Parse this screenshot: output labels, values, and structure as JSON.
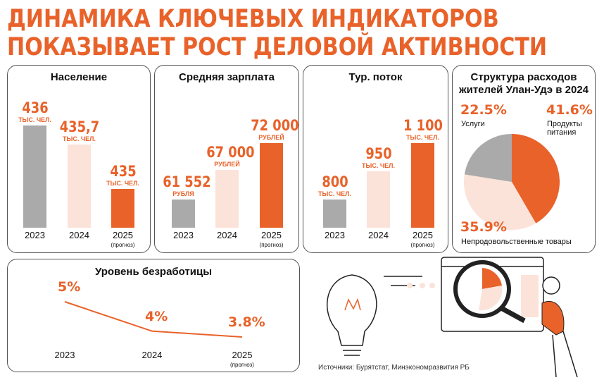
{
  "title": {
    "line1": "ДИНАМИКА КЛЮЧЕВЫХ ИНДИКАТОРОВ",
    "line2": "ПОКАЗЫВАЕТ РОСТ ДЕЛОВОЙ АКТИВНОСТИ"
  },
  "colors": {
    "accent": "#e8622a",
    "gray": "#aaaaaa",
    "light": "#fbe3da"
  },
  "chart_data": [
    {
      "type": "bar",
      "title": "Население",
      "categories": [
        "2023",
        "2024",
        "2025"
      ],
      "notes": [
        "",
        "",
        "(прогноз)"
      ],
      "values": [
        436,
        435.7,
        435
      ],
      "labels": [
        "436",
        "435,7",
        "435"
      ],
      "units": [
        "ТЫС. ЧЕЛ.",
        "ТЫС. ЧЕЛ.",
        "ТЫС. ЧЕЛ."
      ],
      "colors": [
        "#aaaaaa",
        "#fbe3da",
        "#e8622a"
      ]
    },
    {
      "type": "bar",
      "title": "Средняя зарплата",
      "categories": [
        "2023",
        "2024",
        "2025"
      ],
      "notes": [
        "",
        "",
        "(прогноз)"
      ],
      "values": [
        61552,
        67000,
        72000
      ],
      "labels": [
        "61 552",
        "67 000",
        "72 000"
      ],
      "units": [
        "РУБЛЯ",
        "РУБЛЕЙ",
        "РУБЛЕЙ"
      ],
      "colors": [
        "#aaaaaa",
        "#fbe3da",
        "#e8622a"
      ]
    },
    {
      "type": "bar",
      "title": "Тур. поток",
      "categories": [
        "2023",
        "2024",
        "2025"
      ],
      "notes": [
        "",
        "",
        "(прогноз)"
      ],
      "values": [
        800,
        950,
        1100
      ],
      "labels": [
        "800",
        "950",
        "1 100"
      ],
      "units": [
        "ТЫС. ЧЕЛ.",
        "ТЫС. ЧЕЛ.",
        "ТЫС. ЧЕЛ."
      ],
      "colors": [
        "#aaaaaa",
        "#fbe3da",
        "#e8622a"
      ]
    },
    {
      "type": "pie",
      "title": "Структура расходов жителей Улан-Удэ в 2024",
      "slices": [
        {
          "label": "Продукты питания",
          "value": 41.6,
          "text": "41.6%",
          "color": "#e8622a"
        },
        {
          "label": "Непродовольственные товары",
          "value": 35.9,
          "text": "35.9%",
          "color": "#fbe3da"
        },
        {
          "label": "Услуги",
          "value": 22.5,
          "text": "22.5%",
          "color": "#aaaaaa"
        }
      ]
    },
    {
      "type": "line",
      "title": "Уровень безработицы",
      "categories": [
        "2023",
        "2024",
        "2025"
      ],
      "notes": [
        "",
        "",
        "(прогноз)"
      ],
      "values": [
        5,
        4,
        3.8
      ],
      "labels": [
        "5%",
        "4%",
        "3.8%"
      ],
      "color": "#e8622a"
    }
  ],
  "source": "Источники: Бурятстат, Минэкономразвития РБ"
}
